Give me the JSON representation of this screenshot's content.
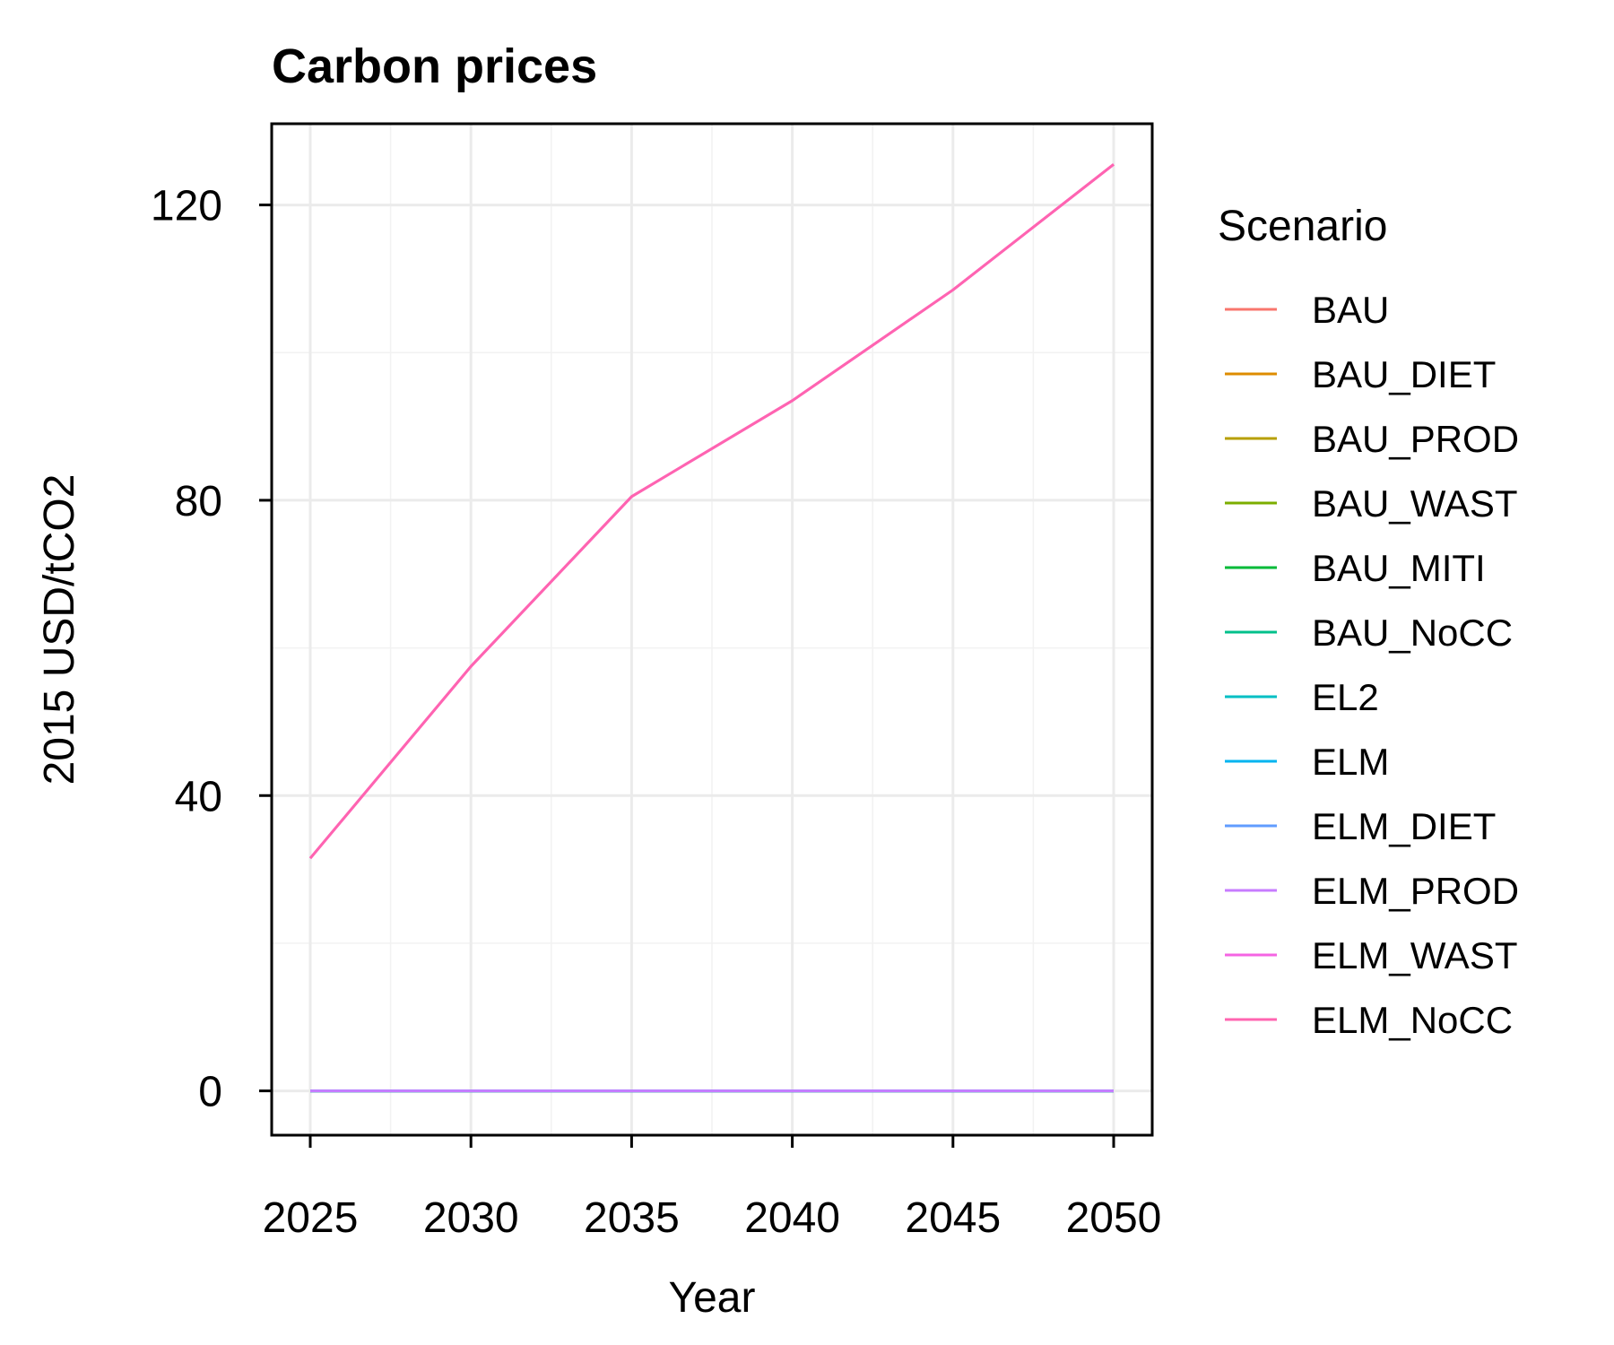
{
  "chart_data": {
    "type": "line",
    "title": "Carbon prices",
    "xlabel": "Year",
    "ylabel": "2015 USD/tCO2",
    "x": [
      2025,
      2030,
      2035,
      2040,
      2045,
      2050
    ],
    "xticks": [
      "2025",
      "2030",
      "2035",
      "2040",
      "2045",
      "2050"
    ],
    "yticks": [
      "0",
      "40",
      "80",
      "120"
    ],
    "xlim": [
      2023.8,
      2051.2
    ],
    "ylim": [
      -6,
      131
    ],
    "grid": true,
    "legend": {
      "title": "Scenario",
      "placement": "right"
    },
    "series": [
      {
        "name": "BAU",
        "color": "#F8766D",
        "values": [
          0,
          0,
          0,
          0,
          0,
          0
        ]
      },
      {
        "name": "BAU_DIET",
        "color": "#DE8C00",
        "values": [
          0,
          0,
          0,
          0,
          0,
          0
        ]
      },
      {
        "name": "BAU_PROD",
        "color": "#B79F00",
        "values": [
          0,
          0,
          0,
          0,
          0,
          0
        ]
      },
      {
        "name": "BAU_WAST",
        "color": "#7CAE00",
        "values": [
          0,
          0,
          0,
          0,
          0,
          0
        ]
      },
      {
        "name": "BAU_MITI",
        "color": "#00BA38",
        "values": [
          0,
          0,
          0,
          0,
          0,
          0
        ]
      },
      {
        "name": "BAU_NoCC",
        "color": "#00C08B",
        "values": [
          0,
          0,
          0,
          0,
          0,
          0
        ]
      },
      {
        "name": "EL2",
        "color": "#00BFC4",
        "values": [
          0,
          0,
          0,
          0,
          0,
          0
        ]
      },
      {
        "name": "ELM",
        "color": "#00B4F0",
        "values": [
          0,
          0,
          0,
          0,
          0,
          0
        ]
      },
      {
        "name": "ELM_DIET",
        "color": "#619CFF",
        "values": [
          0,
          0,
          0,
          0,
          0,
          0
        ]
      },
      {
        "name": "ELM_PROD",
        "color": "#C77CFF",
        "values": [
          0,
          0,
          0,
          0,
          0,
          0
        ]
      },
      {
        "name": "ELM_WAST",
        "color": "#F564E3",
        "values": [
          31.5,
          57.5,
          80.5,
          93.5,
          108.5,
          125.5
        ]
      },
      {
        "name": "ELM_NoCC",
        "color": "#FF64B0",
        "values": [
          31.5,
          57.5,
          80.5,
          93.5,
          108.5,
          125.5
        ]
      }
    ]
  }
}
